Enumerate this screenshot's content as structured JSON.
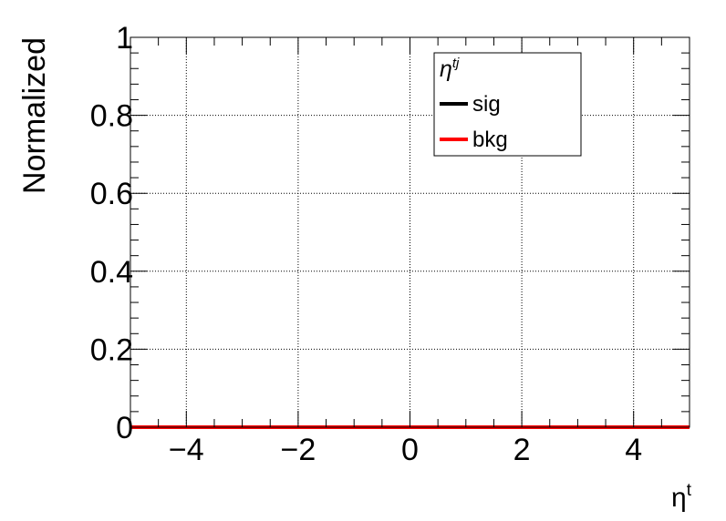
{
  "chart_data": {
    "type": "line",
    "ylabel": "Normalized",
    "xlabel": "η",
    "xlabel_sup": "t",
    "xlim": [
      -5,
      5
    ],
    "ylim": [
      0,
      1
    ],
    "x_ticks": [
      -4,
      -2,
      0,
      2,
      4
    ],
    "x_tick_labels": [
      "−4",
      "−2",
      "0",
      "2",
      "4"
    ],
    "y_ticks": [
      0,
      0.2,
      0.4,
      0.6,
      0.8,
      1
    ],
    "y_tick_labels": [
      "0",
      "0.2",
      "0.4",
      "0.6",
      "0.8",
      "1"
    ],
    "grid": true,
    "legend": {
      "header": "η",
      "header_sup": "tj",
      "placement": "top-right",
      "entries": [
        {
          "name": "sig",
          "color": "#000000"
        },
        {
          "name": "bkg",
          "color": "#ff0000"
        }
      ]
    },
    "series": [
      {
        "name": "sig",
        "color": "#000000",
        "x": [
          -5,
          5
        ],
        "y": [
          0,
          0
        ]
      },
      {
        "name": "bkg",
        "color": "#ff0000",
        "x": [
          -5,
          5
        ],
        "y": [
          0,
          0
        ]
      }
    ]
  }
}
